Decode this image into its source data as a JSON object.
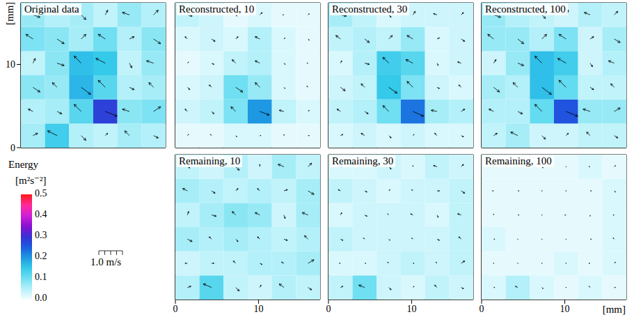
{
  "chart_data": [
    {
      "type": "heatmap",
      "title": "Original data",
      "x": [
        1.45,
        4.35,
        7.25,
        10.15,
        13.05,
        15.95
      ],
      "y": [
        1.45,
        4.35,
        7.25,
        10.15,
        13.05,
        15.95
      ],
      "xlim": [
        0,
        17.4
      ],
      "ylim": [
        0,
        17.4
      ],
      "xticks": [
        0,
        10
      ],
      "yticks": [
        0,
        10
      ],
      "tick_labels": "y",
      "energy": [
        [
          0.06,
          0.14,
          0.05,
          0.04,
          0.06,
          0.05
        ],
        [
          0.05,
          0.06,
          0.12,
          0.28,
          0.08,
          0.09
        ],
        [
          0.08,
          0.07,
          0.17,
          0.12,
          0.05,
          0.06
        ],
        [
          0.04,
          0.08,
          0.16,
          0.15,
          0.04,
          0.07
        ],
        [
          0.09,
          0.08,
          0.06,
          0.1,
          0.05,
          0.08
        ],
        [
          0.07,
          0.05,
          0.06,
          0.04,
          0.07,
          0.05
        ]
      ],
      "u": [
        [
          0.2,
          -0.4,
          0.2,
          0.1,
          -0.2,
          0.2
        ],
        [
          -0.2,
          0.2,
          -0.3,
          0.5,
          -0.3,
          0.3
        ],
        [
          0.3,
          -0.2,
          0.4,
          -0.3,
          0.2,
          -0.2
        ],
        [
          0.1,
          0.3,
          -0.3,
          -0.4,
          0.1,
          -0.3
        ],
        [
          -0.3,
          0.3,
          0.2,
          -0.3,
          0.2,
          0.3
        ],
        [
          0.3,
          -0.2,
          0.2,
          0.1,
          -0.3,
          0.2
        ]
      ],
      "v": [
        [
          0.1,
          0.2,
          -0.2,
          0.1,
          0.2,
          -0.1
        ],
        [
          0.1,
          -0.1,
          0.3,
          -0.2,
          0.1,
          0.2
        ],
        [
          -0.2,
          0.2,
          -0.3,
          0.3,
          -0.1,
          0.2
        ],
        [
          0.2,
          -0.1,
          0.3,
          0.2,
          -0.2,
          0.1
        ],
        [
          0.2,
          -0.2,
          0.2,
          0.2,
          0.1,
          -0.2
        ],
        [
          -0.1,
          0.2,
          -0.2,
          0.2,
          0.1,
          0.2
        ]
      ]
    },
    {
      "type": "heatmap",
      "title": "Reconstructed, 10",
      "x": [
        1.45,
        4.35,
        7.25,
        10.15,
        13.05,
        15.95
      ],
      "y": [
        1.45,
        4.35,
        7.25,
        10.15,
        13.05,
        15.95
      ],
      "xlim": [
        0,
        17.4
      ],
      "ylim": [
        0,
        17.4
      ],
      "xticks": [
        0,
        10
      ],
      "yticks": [
        0,
        10
      ],
      "tick_labels": false,
      "energy": [
        [
          0.01,
          0.01,
          0.02,
          0.02,
          0.01,
          0.01
        ],
        [
          0.03,
          0.04,
          0.09,
          0.2,
          0.04,
          0.02
        ],
        [
          0.02,
          0.03,
          0.1,
          0.07,
          0.02,
          0.01
        ],
        [
          0.01,
          0.02,
          0.04,
          0.05,
          0.02,
          0.01
        ],
        [
          0.02,
          0.03,
          0.02,
          0.05,
          0.02,
          0.01
        ],
        [
          0.04,
          0.03,
          0.01,
          0.02,
          0.01,
          0.01
        ]
      ],
      "u": [
        [
          0.05,
          -0.05,
          0.05,
          0.05,
          0.0,
          0.05
        ],
        [
          -0.1,
          0.1,
          -0.2,
          0.4,
          -0.2,
          0.05
        ],
        [
          0.1,
          -0.1,
          0.3,
          -0.2,
          0.05,
          -0.05
        ],
        [
          0.05,
          0.1,
          -0.15,
          -0.2,
          0.05,
          -0.05
        ],
        [
          -0.1,
          0.15,
          0.1,
          -0.2,
          0.05,
          0.05
        ],
        [
          0.2,
          -0.1,
          0.05,
          0.1,
          -0.05,
          0.05
        ]
      ],
      "v": [
        [
          0.05,
          0.05,
          -0.05,
          0.0,
          0.05,
          0.0
        ],
        [
          0.1,
          -0.1,
          0.2,
          -0.15,
          0.05,
          0.05
        ],
        [
          -0.1,
          0.1,
          -0.2,
          0.2,
          -0.05,
          0.05
        ],
        [
          0.05,
          -0.05,
          0.15,
          0.1,
          -0.05,
          0.0
        ],
        [
          0.1,
          -0.1,
          0.1,
          0.1,
          0.05,
          -0.05
        ],
        [
          -0.05,
          0.1,
          -0.05,
          0.1,
          0.0,
          0.05
        ]
      ]
    },
    {
      "type": "heatmap",
      "title": "Reconstructed, 30",
      "x": [
        1.45,
        4.35,
        7.25,
        10.15,
        13.05,
        15.95
      ],
      "y": [
        1.45,
        4.35,
        7.25,
        10.15,
        13.05,
        15.95
      ],
      "xlim": [
        0,
        17.4
      ],
      "ylim": [
        0,
        17.4
      ],
      "xticks": [
        0,
        10
      ],
      "yticks": [
        0,
        10
      ],
      "tick_labels": false,
      "energy": [
        [
          0.02,
          0.03,
          0.02,
          0.03,
          0.02,
          0.02
        ],
        [
          0.04,
          0.05,
          0.1,
          0.23,
          0.06,
          0.05
        ],
        [
          0.03,
          0.04,
          0.15,
          0.09,
          0.03,
          0.02
        ],
        [
          0.02,
          0.05,
          0.14,
          0.12,
          0.02,
          0.03
        ],
        [
          0.04,
          0.05,
          0.04,
          0.07,
          0.02,
          0.03
        ],
        [
          0.06,
          0.04,
          0.02,
          0.03,
          0.03,
          0.03
        ]
      ],
      "u": [
        [
          0.1,
          -0.15,
          0.1,
          0.05,
          -0.1,
          0.1
        ],
        [
          -0.15,
          0.15,
          -0.25,
          0.45,
          -0.25,
          0.15
        ],
        [
          0.2,
          -0.15,
          0.35,
          -0.25,
          0.1,
          -0.1
        ],
        [
          0.05,
          0.2,
          -0.25,
          -0.3,
          0.05,
          -0.15
        ],
        [
          -0.2,
          0.2,
          0.15,
          -0.25,
          0.1,
          0.15
        ],
        [
          0.25,
          -0.15,
          0.1,
          0.1,
          -0.15,
          0.1
        ]
      ],
      "v": [
        [
          0.05,
          0.1,
          -0.1,
          0.05,
          0.1,
          -0.05
        ],
        [
          0.1,
          -0.1,
          0.25,
          -0.2,
          0.05,
          0.1
        ],
        [
          -0.15,
          0.15,
          -0.25,
          0.25,
          -0.05,
          0.1
        ],
        [
          0.1,
          -0.05,
          0.25,
          0.15,
          -0.1,
          0.05
        ],
        [
          0.15,
          -0.15,
          0.15,
          0.15,
          0.05,
          -0.1
        ],
        [
          -0.05,
          0.15,
          -0.1,
          0.15,
          0.05,
          0.1
        ]
      ]
    },
    {
      "type": "heatmap",
      "title": "Reconstructed, 100",
      "x": [
        1.45,
        4.35,
        7.25,
        10.15,
        13.05,
        15.95
      ],
      "y": [
        1.45,
        4.35,
        7.25,
        10.15,
        13.05,
        15.95
      ],
      "xlim": [
        0,
        17.4
      ],
      "ylim": [
        0,
        17.4
      ],
      "xticks": [
        0,
        10
      ],
      "yticks": [
        0,
        10
      ],
      "tick_labels": false,
      "energy": [
        [
          0.04,
          0.06,
          0.03,
          0.03,
          0.04,
          0.04
        ],
        [
          0.05,
          0.05,
          0.11,
          0.26,
          0.07,
          0.07
        ],
        [
          0.06,
          0.05,
          0.16,
          0.11,
          0.04,
          0.04
        ],
        [
          0.03,
          0.07,
          0.16,
          0.14,
          0.03,
          0.05
        ],
        [
          0.07,
          0.07,
          0.05,
          0.09,
          0.03,
          0.06
        ],
        [
          0.07,
          0.05,
          0.04,
          0.03,
          0.05,
          0.04
        ]
      ],
      "u": [
        [
          0.15,
          -0.3,
          0.15,
          0.1,
          -0.15,
          0.15
        ],
        [
          -0.2,
          0.2,
          -0.3,
          0.5,
          -0.3,
          0.25
        ],
        [
          0.25,
          -0.2,
          0.4,
          -0.3,
          0.15,
          -0.15
        ],
        [
          0.1,
          0.25,
          -0.3,
          -0.35,
          0.1,
          -0.25
        ],
        [
          -0.25,
          0.25,
          0.2,
          -0.3,
          0.15,
          0.25
        ],
        [
          0.3,
          -0.2,
          0.15,
          0.1,
          -0.25,
          0.15
        ]
      ],
      "v": [
        [
          0.1,
          0.15,
          -0.15,
          0.1,
          0.15,
          -0.1
        ],
        [
          0.1,
          -0.1,
          0.3,
          -0.2,
          0.1,
          0.15
        ],
        [
          -0.2,
          0.2,
          -0.3,
          0.3,
          -0.1,
          0.15
        ],
        [
          0.15,
          -0.1,
          0.3,
          0.2,
          -0.15,
          0.1
        ],
        [
          0.2,
          -0.2,
          0.2,
          0.2,
          0.1,
          -0.15
        ],
        [
          -0.1,
          0.2,
          -0.15,
          0.2,
          0.1,
          0.15
        ]
      ]
    },
    {
      "type": "heatmap",
      "title": "Remaining, 10",
      "x": [
        1.45,
        4.35,
        7.25,
        10.15,
        13.05,
        15.95
      ],
      "y": [
        1.45,
        4.35,
        7.25,
        10.15,
        13.05,
        15.95
      ],
      "xlim": [
        0,
        17.4
      ],
      "ylim": [
        0,
        17.4
      ],
      "xticks": [
        0,
        10
      ],
      "yticks": [
        0,
        10
      ],
      "tick_labels": "x",
      "energy": [
        [
          0.05,
          0.12,
          0.04,
          0.03,
          0.05,
          0.04
        ],
        [
          0.03,
          0.04,
          0.04,
          0.05,
          0.05,
          0.06
        ],
        [
          0.06,
          0.05,
          0.06,
          0.05,
          0.04,
          0.05
        ],
        [
          0.04,
          0.06,
          0.08,
          0.07,
          0.03,
          0.06
        ],
        [
          0.06,
          0.05,
          0.04,
          0.05,
          0.04,
          0.06
        ],
        [
          0.04,
          0.03,
          0.05,
          0.03,
          0.06,
          0.04
        ]
      ],
      "u": [
        [
          0.15,
          -0.35,
          0.15,
          0.05,
          -0.2,
          0.15
        ],
        [
          -0.1,
          0.1,
          -0.1,
          0.1,
          -0.1,
          0.25
        ],
        [
          0.2,
          -0.1,
          0.1,
          -0.1,
          0.15,
          -0.15
        ],
        [
          0.05,
          0.2,
          -0.15,
          -0.2,
          0.05,
          -0.25
        ],
        [
          -0.2,
          0.15,
          0.1,
          -0.1,
          0.15,
          0.25
        ],
        [
          0.1,
          -0.1,
          0.15,
          0.0,
          -0.25,
          0.15
        ]
      ],
      "v": [
        [
          0.05,
          0.15,
          -0.15,
          0.1,
          0.15,
          -0.1
        ],
        [
          0.0,
          0.0,
          0.1,
          -0.05,
          0.05,
          0.15
        ],
        [
          -0.1,
          0.1,
          -0.1,
          0.1,
          -0.05,
          0.15
        ],
        [
          0.15,
          -0.05,
          0.15,
          0.1,
          -0.15,
          0.1
        ],
        [
          0.1,
          -0.1,
          0.1,
          0.1,
          0.05,
          -0.15
        ],
        [
          -0.05,
          0.1,
          -0.15,
          0.1,
          0.1,
          0.15
        ]
      ]
    },
    {
      "type": "heatmap",
      "title": "Remaining, 30",
      "x": [
        1.45,
        4.35,
        7.25,
        10.15,
        13.05,
        15.95
      ],
      "y": [
        1.45,
        4.35,
        7.25,
        10.15,
        13.05,
        15.95
      ],
      "xlim": [
        0,
        17.4
      ],
      "ylim": [
        0,
        17.4
      ],
      "xticks": [
        0,
        10
      ],
      "yticks": [
        0,
        10
      ],
      "tick_labels": "x",
      "energy": [
        [
          0.04,
          0.1,
          0.03,
          0.02,
          0.04,
          0.03
        ],
        [
          0.02,
          0.02,
          0.03,
          0.04,
          0.03,
          0.04
        ],
        [
          0.04,
          0.03,
          0.03,
          0.03,
          0.03,
          0.04
        ],
        [
          0.02,
          0.03,
          0.03,
          0.03,
          0.02,
          0.04
        ],
        [
          0.04,
          0.03,
          0.02,
          0.03,
          0.03,
          0.04
        ],
        [
          0.02,
          0.02,
          0.03,
          0.02,
          0.04,
          0.03
        ]
      ],
      "u": [
        [
          0.1,
          -0.25,
          0.1,
          0.05,
          -0.1,
          0.1
        ],
        [
          -0.05,
          0.05,
          -0.05,
          0.05,
          -0.05,
          0.15
        ],
        [
          0.1,
          -0.05,
          0.05,
          -0.05,
          0.1,
          -0.1
        ],
        [
          0.05,
          0.1,
          -0.05,
          -0.1,
          0.05,
          -0.15
        ],
        [
          -0.1,
          0.1,
          0.05,
          -0.05,
          0.1,
          0.15
        ],
        [
          0.05,
          -0.05,
          0.1,
          0.0,
          -0.15,
          0.1
        ]
      ],
      "v": [
        [
          0.05,
          0.1,
          -0.1,
          0.05,
          0.1,
          -0.05
        ],
        [
          0.0,
          0.0,
          0.05,
          0.0,
          0.05,
          0.1
        ],
        [
          -0.05,
          0.05,
          -0.05,
          0.05,
          -0.05,
          0.1
        ],
        [
          0.1,
          -0.05,
          0.05,
          0.05,
          -0.1,
          0.05
        ],
        [
          0.05,
          -0.05,
          0.05,
          0.05,
          0.0,
          -0.1
        ],
        [
          0.0,
          0.05,
          -0.1,
          0.05,
          0.05,
          0.1
        ]
      ]
    },
    {
      "type": "heatmap",
      "title": "Remaining, 100",
      "x": [
        1.45,
        4.35,
        7.25,
        10.15,
        13.05,
        15.95
      ],
      "y": [
        1.45,
        4.35,
        7.25,
        10.15,
        13.05,
        15.95
      ],
      "xlim": [
        0,
        17.4
      ],
      "ylim": [
        0,
        17.4
      ],
      "xticks": [
        0,
        10
      ],
      "yticks": [
        0,
        10
      ],
      "tick_labels": "x",
      "energy": [
        [
          0.02,
          0.05,
          0.02,
          0.01,
          0.02,
          0.01
        ],
        [
          0.01,
          0.01,
          0.01,
          0.02,
          0.01,
          0.02
        ],
        [
          0.02,
          0.01,
          0.01,
          0.01,
          0.01,
          0.02
        ],
        [
          0.01,
          0.01,
          0.01,
          0.01,
          0.01,
          0.02
        ],
        [
          0.01,
          0.01,
          0.01,
          0.01,
          0.01,
          0.02
        ],
        [
          0.01,
          0.01,
          0.01,
          0.01,
          0.02,
          0.01
        ]
      ],
      "u": [
        [
          0.05,
          -0.1,
          0.05,
          0.0,
          -0.05,
          0.05
        ],
        [
          0.0,
          0.0,
          0.0,
          0.0,
          -0.05,
          0.05
        ],
        [
          0.05,
          0.0,
          0.0,
          0.0,
          0.05,
          -0.05
        ],
        [
          0.0,
          0.05,
          0.0,
          -0.05,
          0.0,
          -0.05
        ],
        [
          -0.05,
          0.05,
          0.0,
          0.0,
          0.05,
          0.05
        ],
        [
          0.0,
          0.0,
          0.05,
          0.0,
          -0.05,
          0.05
        ]
      ],
      "v": [
        [
          0.0,
          0.05,
          -0.05,
          0.0,
          0.05,
          0.0
        ],
        [
          0.0,
          0.0,
          0.0,
          0.0,
          0.0,
          0.05
        ],
        [
          0.0,
          0.0,
          0.0,
          0.0,
          0.0,
          0.05
        ],
        [
          0.05,
          0.0,
          0.0,
          0.0,
          -0.05,
          0.0
        ],
        [
          0.0,
          0.0,
          0.0,
          0.0,
          0.0,
          -0.05
        ],
        [
          0.0,
          0.0,
          -0.05,
          0.0,
          0.0,
          0.05
        ]
      ]
    }
  ],
  "figure": {
    "xlabel": "[mm]",
    "ylabel": "[mm]"
  },
  "colorbar": {
    "label": "Energy",
    "unit": "[m²s⁻²]",
    "range": [
      0,
      0.5
    ],
    "ticks": [
      {
        "value": 0,
        "label": "0.0"
      },
      0.1,
      0.2,
      0.3,
      0.4,
      0.5
    ],
    "colors": [
      "#f2fdff",
      "#b4f0f9",
      "#6fdff1",
      "#35c9ea",
      "#1e98e2",
      "#1a5ce0",
      "#3a2fd4",
      "#8a10d0",
      "#d020d8",
      "#ff2a9a",
      "#ff1a1a"
    ]
  },
  "vector_scale": {
    "value": 1.0,
    "label": "1.0 m/s"
  }
}
